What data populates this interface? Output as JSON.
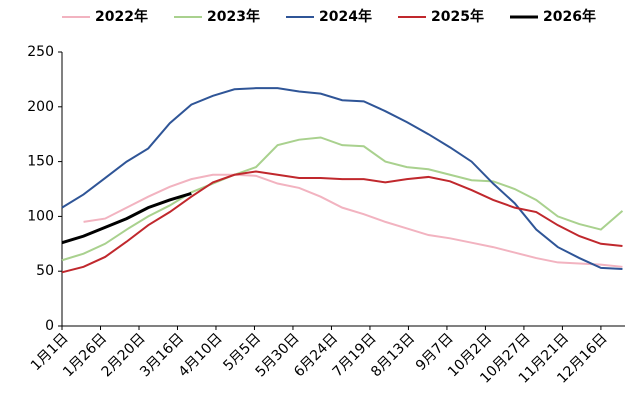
{
  "chart_data": {
    "type": "line",
    "x": [
      0,
      14,
      28,
      42,
      56,
      70,
      84,
      98,
      112,
      126,
      140,
      154,
      168,
      182,
      196,
      210,
      224,
      238,
      252,
      266,
      280,
      294,
      308,
      322,
      336,
      350,
      364
    ],
    "xlim": [
      0,
      365
    ],
    "xticks": [
      {
        "value": 0,
        "label": "1月1日"
      },
      {
        "value": 25,
        "label": "1月26日"
      },
      {
        "value": 50,
        "label": "2月20日"
      },
      {
        "value": 75,
        "label": "3月16日"
      },
      {
        "value": 100,
        "label": "4月10日"
      },
      {
        "value": 125,
        "label": "5月5日"
      },
      {
        "value": 150,
        "label": "5月30日"
      },
      {
        "value": 175,
        "label": "6月24日"
      },
      {
        "value": 200,
        "label": "7月19日"
      },
      {
        "value": 225,
        "label": "8月13日"
      },
      {
        "value": 250,
        "label": "9月7日"
      },
      {
        "value": 275,
        "label": "10月2日"
      },
      {
        "value": 300,
        "label": "10月27日"
      },
      {
        "value": 325,
        "label": "11月21日"
      },
      {
        "value": 350,
        "label": "12月16日"
      }
    ],
    "ylim": [
      0,
      250
    ],
    "yticks": [
      0,
      50,
      100,
      150,
      200,
      250
    ],
    "series": [
      {
        "name": "2022年",
        "color": "#f2b3c0",
        "values": [
          null,
          95,
          98,
          108,
          118,
          127,
          134,
          138,
          138,
          137,
          130,
          126,
          118,
          108,
          102,
          95,
          89,
          83,
          80,
          76,
          72,
          67,
          62,
          58,
          57,
          56,
          54
        ]
      },
      {
        "name": "2023年",
        "color": "#a9d18e",
        "values": [
          60,
          66,
          75,
          88,
          100,
          110,
          122,
          130,
          138,
          145,
          165,
          170,
          172,
          165,
          164,
          150,
          145,
          143,
          138,
          133,
          132,
          125,
          115,
          100,
          93,
          88,
          105
        ]
      },
      {
        "name": "2024年",
        "color": "#2f5597",
        "values": [
          108,
          120,
          135,
          150,
          162,
          185,
          202,
          210,
          216,
          217,
          217,
          214,
          212,
          206,
          205,
          196,
          186,
          175,
          163,
          150,
          130,
          112,
          88,
          72,
          62,
          53,
          52
        ]
      },
      {
        "name": "2025年",
        "color": "#c0282d",
        "values": [
          49,
          54,
          63,
          77,
          92,
          104,
          118,
          131,
          138,
          141,
          138,
          135,
          135,
          134,
          134,
          131,
          134,
          136,
          132,
          124,
          115,
          108,
          104,
          92,
          82,
          75,
          73
        ]
      },
      {
        "name": "2026年",
        "color": "#000000",
        "values": [
          76,
          82,
          90,
          98,
          108,
          115,
          121,
          null,
          null,
          null,
          null,
          null,
          null,
          null,
          null,
          null,
          null,
          null,
          null,
          null,
          null,
          null,
          null,
          null,
          null,
          null,
          null
        ]
      }
    ]
  }
}
